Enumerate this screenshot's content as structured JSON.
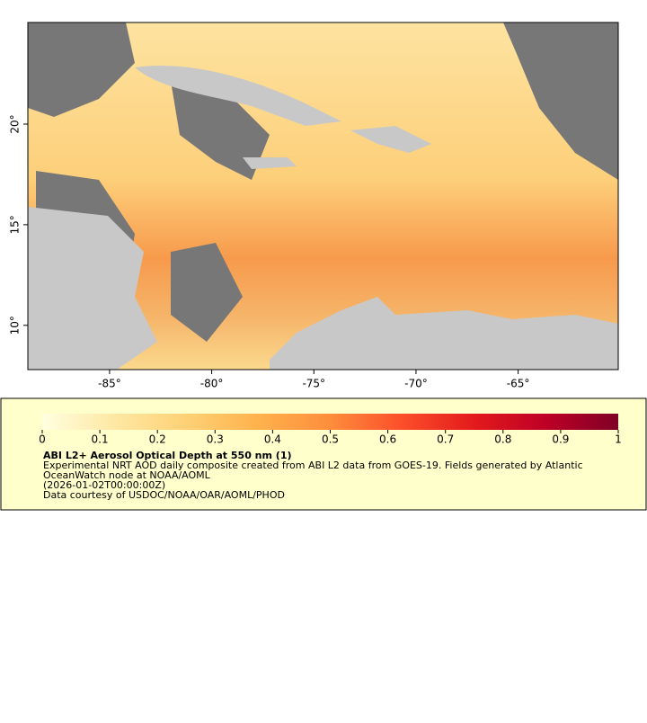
{
  "chart_data": {
    "type": "map",
    "xlim": [
      -89,
      -60.1
    ],
    "ylim": [
      7.8,
      25.05
    ],
    "xticks": [
      {
        "value": -85,
        "label": "-85°"
      },
      {
        "value": -80,
        "label": "-80°"
      },
      {
        "value": -75,
        "label": "-75°"
      },
      {
        "value": -70,
        "label": "-70°"
      },
      {
        "value": -65,
        "label": "-65°"
      }
    ],
    "yticks": [
      {
        "value": 10,
        "label": "10°"
      },
      {
        "value": 15,
        "label": "15°"
      },
      {
        "value": 20,
        "label": "20°"
      }
    ],
    "colorbar": {
      "lim": [
        0,
        1
      ],
      "ticks": [
        0,
        0.1,
        0.2,
        0.3,
        0.4,
        0.5,
        0.6,
        0.7,
        0.8,
        0.9,
        1
      ],
      "colors": [
        "#ffffe0",
        "#fee8a4",
        "#fed176",
        "#feb24c",
        "#fd8d3c",
        "#fc4e2a",
        "#e31a1c",
        "#bd0026",
        "#800026"
      ]
    },
    "title": "ABI L2+ Aerosol Optical Depth at 550 nm (1)",
    "description": [
      "Experimental NRT AOD daily composite created from ABI L2 data from GOES-19. Fields generated by Atlantic",
      "OceanWatch node at NOAA/AOML"
    ],
    "date": "(2026-01-02T00:00:00Z)",
    "credit": "Data courtesy of USDOC/NOAA/OAR/AOML/PHOD"
  }
}
